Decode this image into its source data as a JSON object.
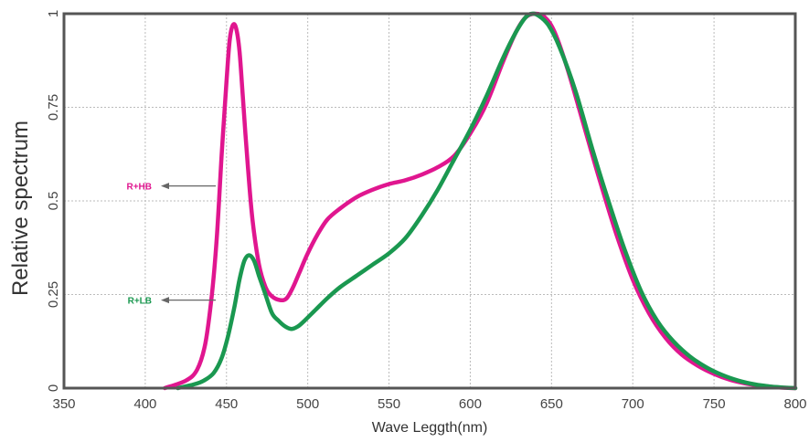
{
  "chart_data": {
    "type": "line",
    "xlabel": "Wave Leggth(nm)",
    "ylabel": "Relative spectrum",
    "xlim": [
      350,
      800
    ],
    "ylim": [
      0,
      1
    ],
    "x_ticks": [
      350,
      400,
      450,
      500,
      550,
      600,
      650,
      700,
      750,
      800
    ],
    "y_ticks": [
      {
        "value": 0,
        "label": "0"
      },
      {
        "value": 0.25,
        "label": "0.25"
      },
      {
        "value": 0.5,
        "label": "0.5"
      },
      {
        "value": 0.75,
        "label": "0.75"
      },
      {
        "value": 1,
        "label": "1"
      }
    ],
    "grid": true,
    "series": [
      {
        "name": "R+HB",
        "color": "#e0168f",
        "points": [
          [
            412,
            0
          ],
          [
            425,
            0.02
          ],
          [
            432,
            0.05
          ],
          [
            437,
            0.12
          ],
          [
            441,
            0.25
          ],
          [
            444,
            0.4
          ],
          [
            447,
            0.62
          ],
          [
            450,
            0.82
          ],
          [
            452,
            0.93
          ],
          [
            454,
            0.97
          ],
          [
            456,
            0.96
          ],
          [
            458,
            0.9
          ],
          [
            460,
            0.78
          ],
          [
            463,
            0.6
          ],
          [
            466,
            0.45
          ],
          [
            470,
            0.33
          ],
          [
            474,
            0.27
          ],
          [
            478,
            0.245
          ],
          [
            483,
            0.235
          ],
          [
            487,
            0.24
          ],
          [
            491,
            0.27
          ],
          [
            495,
            0.31
          ],
          [
            500,
            0.36
          ],
          [
            506,
            0.41
          ],
          [
            512,
            0.45
          ],
          [
            520,
            0.48
          ],
          [
            530,
            0.51
          ],
          [
            540,
            0.53
          ],
          [
            550,
            0.545
          ],
          [
            560,
            0.555
          ],
          [
            570,
            0.57
          ],
          [
            580,
            0.59
          ],
          [
            590,
            0.62
          ],
          [
            600,
            0.68
          ],
          [
            610,
            0.76
          ],
          [
            620,
            0.87
          ],
          [
            628,
            0.95
          ],
          [
            634,
            0.99
          ],
          [
            640,
            1.0
          ],
          [
            646,
            0.99
          ],
          [
            652,
            0.95
          ],
          [
            660,
            0.85
          ],
          [
            670,
            0.7
          ],
          [
            680,
            0.55
          ],
          [
            690,
            0.41
          ],
          [
            700,
            0.29
          ],
          [
            710,
            0.2
          ],
          [
            720,
            0.135
          ],
          [
            730,
            0.09
          ],
          [
            740,
            0.06
          ],
          [
            750,
            0.038
          ],
          [
            760,
            0.022
          ],
          [
            770,
            0.012
          ],
          [
            780,
            0.006
          ],
          [
            790,
            0.002
          ],
          [
            800,
            0
          ]
        ]
      },
      {
        "name": "R+LB",
        "color": "#1a9850",
        "points": [
          [
            420,
            0
          ],
          [
            430,
            0.01
          ],
          [
            436,
            0.02
          ],
          [
            442,
            0.04
          ],
          [
            447,
            0.08
          ],
          [
            451,
            0.14
          ],
          [
            455,
            0.22
          ],
          [
            458,
            0.29
          ],
          [
            461,
            0.34
          ],
          [
            464,
            0.355
          ],
          [
            467,
            0.34
          ],
          [
            470,
            0.3
          ],
          [
            474,
            0.25
          ],
          [
            478,
            0.2
          ],
          [
            482,
            0.18
          ],
          [
            486,
            0.165
          ],
          [
            490,
            0.158
          ],
          [
            494,
            0.165
          ],
          [
            498,
            0.18
          ],
          [
            505,
            0.21
          ],
          [
            512,
            0.24
          ],
          [
            520,
            0.27
          ],
          [
            530,
            0.3
          ],
          [
            540,
            0.33
          ],
          [
            550,
            0.36
          ],
          [
            560,
            0.4
          ],
          [
            570,
            0.46
          ],
          [
            580,
            0.53
          ],
          [
            590,
            0.61
          ],
          [
            600,
            0.69
          ],
          [
            610,
            0.78
          ],
          [
            620,
            0.88
          ],
          [
            628,
            0.95
          ],
          [
            634,
            0.99
          ],
          [
            638,
            1.0
          ],
          [
            642,
            0.995
          ],
          [
            648,
            0.97
          ],
          [
            655,
            0.91
          ],
          [
            665,
            0.79
          ],
          [
            675,
            0.64
          ],
          [
            685,
            0.5
          ],
          [
            695,
            0.37
          ],
          [
            705,
            0.26
          ],
          [
            715,
            0.18
          ],
          [
            725,
            0.125
          ],
          [
            735,
            0.085
          ],
          [
            745,
            0.056
          ],
          [
            755,
            0.035
          ],
          [
            765,
            0.02
          ],
          [
            775,
            0.01
          ],
          [
            785,
            0.004
          ],
          [
            795,
            0.001
          ],
          [
            800,
            0
          ]
        ]
      }
    ],
    "annotations": [
      {
        "text": "R+HB",
        "color": "#e0168f",
        "y": 0.54
      },
      {
        "text": "R+LB",
        "color": "#1a9850",
        "y": 0.235
      }
    ]
  }
}
